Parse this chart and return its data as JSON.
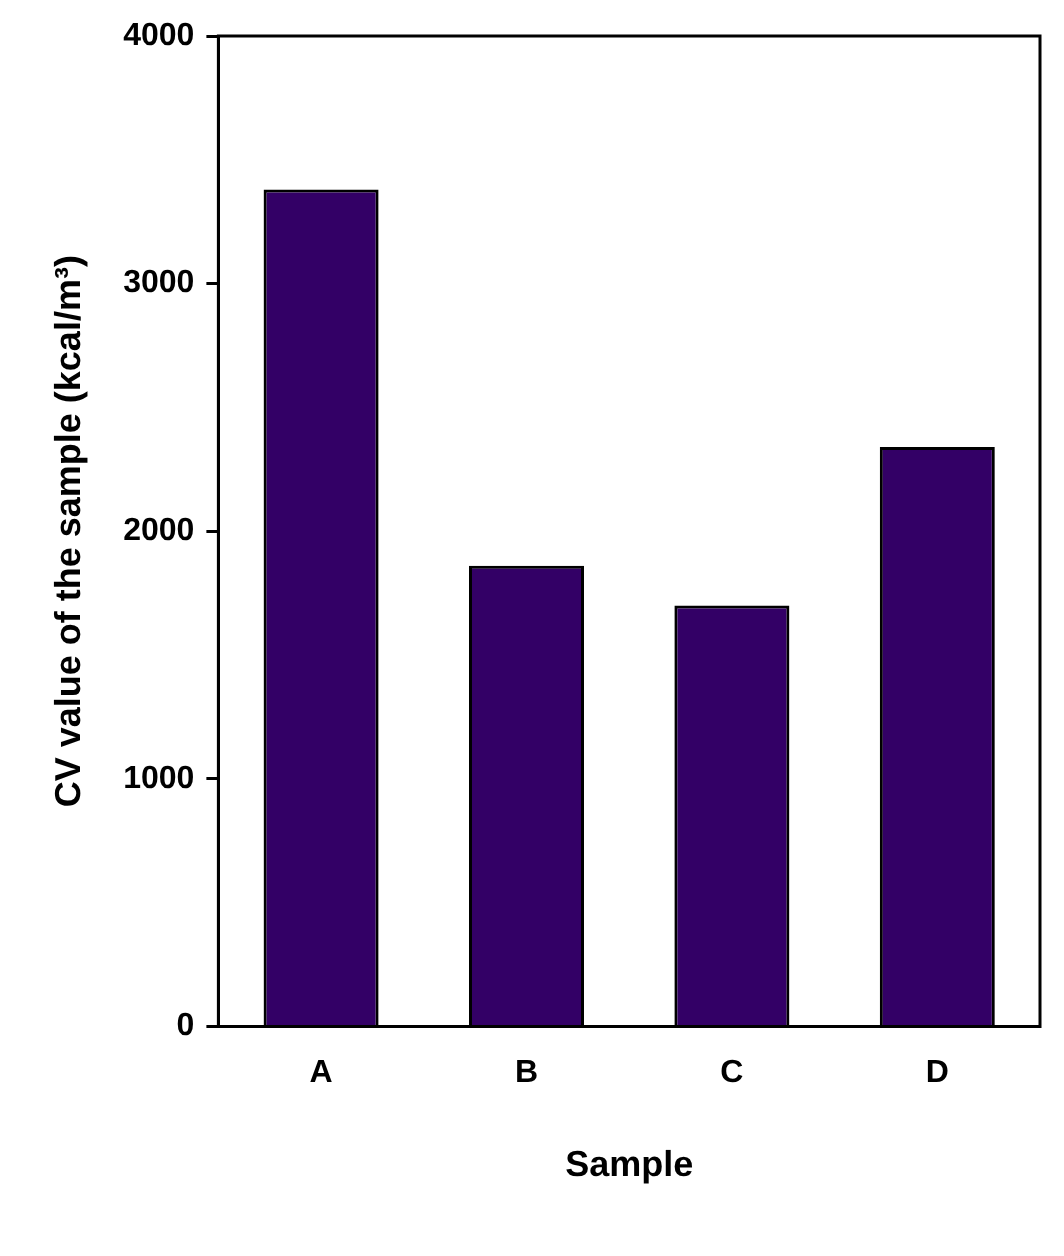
{
  "chart_data": {
    "type": "bar",
    "xlabel": "Sample",
    "ylabel": "CV value of the sample (kcal/m³)",
    "categories": [
      "A",
      "B",
      "C",
      "D"
    ],
    "values": [
      3380,
      1860,
      1700,
      2340
    ],
    "color": "#330066",
    "ylim": [
      0,
      4000
    ],
    "yticks": [
      0,
      1000,
      2000,
      3000,
      4000
    ],
    "grid": false,
    "legend": false
  }
}
